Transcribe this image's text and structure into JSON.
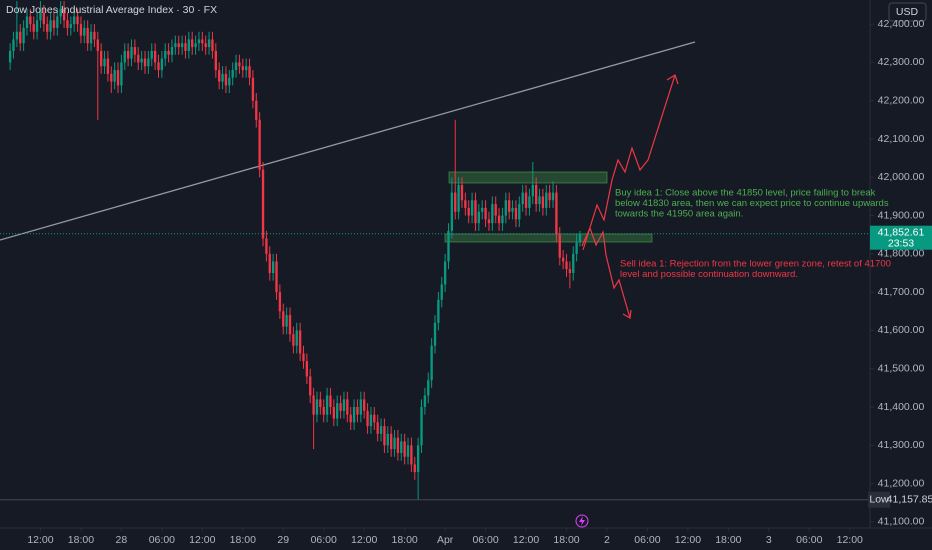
{
  "chart_data": {
    "type": "candlestick",
    "title": "Dow Jones Industrial Average Index · 30 · FX",
    "currency": "USD",
    "up_color": "#089981",
    "down_color": "#f23645",
    "grid": false,
    "xlim": [
      -3,
      255
    ],
    "ylim": [
      41084,
      42463
    ],
    "yticks": [
      {
        "value": 41100,
        "label": "41,100.00"
      },
      {
        "value": 41200,
        "label": "41,200.00"
      },
      {
        "value": 41300,
        "label": "41,300.00"
      },
      {
        "value": 41400,
        "label": "41,400.00"
      },
      {
        "value": 41500,
        "label": "41,500.00"
      },
      {
        "value": 41600,
        "label": "41,600.00"
      },
      {
        "value": 41700,
        "label": "41,700.00"
      },
      {
        "value": 41800,
        "label": "41,800.00"
      },
      {
        "value": 41900,
        "label": "41,900.00"
      },
      {
        "value": 42000,
        "label": "42,000.00"
      },
      {
        "value": 42100,
        "label": "42,100.00"
      },
      {
        "value": 42200,
        "label": "42,200.00"
      },
      {
        "value": 42300,
        "label": "42,300.00"
      },
      {
        "value": 42400,
        "label": "42,400.00"
      }
    ],
    "xticks": [
      {
        "value": 9,
        "label": "12:00"
      },
      {
        "value": 21,
        "label": "18:00"
      },
      {
        "value": 33,
        "label": "28"
      },
      {
        "value": 45,
        "label": "06:00"
      },
      {
        "value": 57,
        "label": "12:00"
      },
      {
        "value": 69,
        "label": "18:00"
      },
      {
        "value": 81,
        "label": "29"
      },
      {
        "value": 93,
        "label": "06:00"
      },
      {
        "value": 105,
        "label": "12:00"
      },
      {
        "value": 117,
        "label": "18:00"
      },
      {
        "value": 129,
        "label": "Apr"
      },
      {
        "value": 141,
        "label": "06:00"
      },
      {
        "value": 153,
        "label": "12:00"
      },
      {
        "value": 165,
        "label": "18:00"
      },
      {
        "value": 177,
        "label": "2"
      },
      {
        "value": 189,
        "label": "06:00"
      },
      {
        "value": 201,
        "label": "12:00"
      },
      {
        "value": 213,
        "label": "18:00"
      },
      {
        "value": 225,
        "label": "3"
      },
      {
        "value": 237,
        "label": "06:00"
      },
      {
        "value": 249,
        "label": "12:00"
      }
    ],
    "last_price": {
      "value": 41852.61,
      "label": "41,852.61"
    },
    "countdown": "23:53",
    "low": {
      "value": 41157.85,
      "label": "41,157.85"
    },
    "low_text": "Low",
    "buy_note": [
      "Buy idea 1: Close above the 41850 level, price failing to break",
      "below 41830 area, then we can expect price to continue upwards",
      "towards the 41950 area again."
    ],
    "sell_note": [
      "Sell idea 1: Rejection from the lower green zone, retest of 41700",
      "level and possible continuation downward."
    ],
    "ohlc": [
      [
        42300,
        42350,
        42280,
        42330
      ],
      [
        42330,
        42380,
        42310,
        42360
      ],
      [
        42360,
        42460,
        42340,
        42380
      ],
      [
        42380,
        42400,
        42330,
        42350
      ],
      [
        42350,
        42410,
        42330,
        42390
      ],
      [
        42390,
        42440,
        42370,
        42420
      ],
      [
        42420,
        42440,
        42380,
        42400
      ],
      [
        42400,
        42420,
        42360,
        42380
      ],
      [
        42380,
        42430,
        42360,
        42410
      ],
      [
        42410,
        42460,
        42390,
        42430
      ],
      [
        42430,
        42450,
        42380,
        42400
      ],
      [
        42400,
        42420,
        42360,
        42380
      ],
      [
        42380,
        42430,
        42360,
        42410
      ],
      [
        42410,
        42430,
        42370,
        42390
      ],
      [
        42390,
        42440,
        42370,
        42420
      ],
      [
        42420,
        42460,
        42400,
        42440
      ],
      [
        42440,
        42460,
        42390,
        42410
      ],
      [
        42410,
        42430,
        42370,
        42390
      ],
      [
        42390,
        42420,
        42370,
        42400
      ],
      [
        42400,
        42440,
        42380,
        42420
      ],
      [
        42420,
        42440,
        42380,
        42400
      ],
      [
        42400,
        42420,
        42350,
        42370
      ],
      [
        42370,
        42410,
        42350,
        42390
      ],
      [
        42390,
        42410,
        42330,
        42350
      ],
      [
        42350,
        42400,
        42330,
        42380
      ],
      [
        42380,
        42400,
        42340,
        42360
      ],
      [
        42360,
        42380,
        42150,
        42330
      ],
      [
        42330,
        42350,
        42270,
        42290
      ],
      [
        42290,
        42330,
        42270,
        42310
      ],
      [
        42310,
        42330,
        42250,
        42270
      ],
      [
        42270,
        42290,
        42220,
        42250
      ],
      [
        42250,
        42300,
        42230,
        42280
      ],
      [
        42280,
        42300,
        42220,
        42240
      ],
      [
        42240,
        42320,
        42220,
        42300
      ],
      [
        42300,
        42350,
        42280,
        42330
      ],
      [
        42330,
        42350,
        42290,
        42310
      ],
      [
        42310,
        42360,
        42290,
        42340
      ],
      [
        42340,
        42360,
        42300,
        42320
      ],
      [
        42320,
        42340,
        42280,
        42300
      ],
      [
        42300,
        42330,
        42280,
        42310
      ],
      [
        42310,
        42330,
        42270,
        42290
      ],
      [
        42290,
        42330,
        42270,
        42310
      ],
      [
        42310,
        42350,
        42290,
        42330
      ],
      [
        42330,
        42350,
        42280,
        42300
      ],
      [
        42300,
        42320,
        42260,
        42280
      ],
      [
        42280,
        42330,
        42260,
        42310
      ],
      [
        42310,
        42350,
        42290,
        42330
      ],
      [
        42330,
        42350,
        42300,
        42320
      ],
      [
        42320,
        42360,
        42300,
        42340
      ],
      [
        42340,
        42370,
        42320,
        42350
      ],
      [
        42350,
        42370,
        42320,
        42340
      ],
      [
        42340,
        42370,
        42320,
        42350
      ],
      [
        42350,
        42370,
        42310,
        42330
      ],
      [
        42330,
        42380,
        42310,
        42360
      ],
      [
        42360,
        42380,
        42320,
        42340
      ],
      [
        42340,
        42370,
        42320,
        42350
      ],
      [
        42350,
        42380,
        42330,
        42360
      ],
      [
        42360,
        42380,
        42330,
        42350
      ],
      [
        42350,
        42370,
        42320,
        42340
      ],
      [
        42340,
        42380,
        42320,
        42360
      ],
      [
        42360,
        42380,
        42310,
        42330
      ],
      [
        42330,
        42350,
        42260,
        42280
      ],
      [
        42280,
        42300,
        42230,
        42250
      ],
      [
        42250,
        42290,
        42230,
        42270
      ],
      [
        42270,
        42290,
        42220,
        42240
      ],
      [
        42240,
        42280,
        42220,
        42260
      ],
      [
        42260,
        42300,
        42240,
        42280
      ],
      [
        42280,
        42320,
        42260,
        42300
      ],
      [
        42300,
        42320,
        42270,
        42290
      ],
      [
        42290,
        42310,
        42260,
        42280
      ],
      [
        42280,
        42310,
        42260,
        42290
      ],
      [
        42290,
        42310,
        42240,
        42260
      ],
      [
        42260,
        42280,
        42180,
        42200
      ],
      [
        42200,
        42220,
        42130,
        42150
      ],
      [
        42150,
        42170,
        42000,
        42020
      ],
      [
        42020,
        42040,
        41820,
        41840
      ],
      [
        41840,
        41860,
        41780,
        41800
      ],
      [
        41800,
        41820,
        41730,
        41750
      ],
      [
        41750,
        41800,
        41730,
        41780
      ],
      [
        41780,
        41800,
        41680,
        41700
      ],
      [
        41700,
        41720,
        41630,
        41650
      ],
      [
        41650,
        41670,
        41590,
        41610
      ],
      [
        41610,
        41660,
        41590,
        41640
      ],
      [
        41640,
        41660,
        41570,
        41590
      ],
      [
        41590,
        41610,
        41540,
        41560
      ],
      [
        41560,
        41620,
        41540,
        41600
      ],
      [
        41600,
        41620,
        41520,
        41540
      ],
      [
        41540,
        41560,
        41500,
        41520
      ],
      [
        41520,
        41540,
        41460,
        41480
      ],
      [
        41480,
        41500,
        41410,
        41430
      ],
      [
        41430,
        41450,
        41290,
        41380
      ],
      [
        41380,
        41440,
        41360,
        41420
      ],
      [
        41420,
        41440,
        41380,
        41400
      ],
      [
        41400,
        41420,
        41360,
        41380
      ],
      [
        41380,
        41450,
        41360,
        41430
      ],
      [
        41430,
        41450,
        41380,
        41400
      ],
      [
        41400,
        41420,
        41350,
        41370
      ],
      [
        41370,
        41430,
        41350,
        41410
      ],
      [
        41410,
        41430,
        41370,
        41390
      ],
      [
        41390,
        41440,
        41370,
        41420
      ],
      [
        41420,
        41440,
        41360,
        41380
      ],
      [
        41380,
        41400,
        41340,
        41360
      ],
      [
        41360,
        41420,
        41340,
        41400
      ],
      [
        41400,
        41420,
        41360,
        41380
      ],
      [
        41380,
        41440,
        41360,
        41420
      ],
      [
        41420,
        41440,
        41370,
        41390
      ],
      [
        41390,
        41410,
        41330,
        41350
      ],
      [
        41350,
        41400,
        41330,
        41380
      ],
      [
        41380,
        41400,
        41340,
        41360
      ],
      [
        41360,
        41380,
        41310,
        41330
      ],
      [
        41330,
        41370,
        41310,
        41350
      ],
      [
        41350,
        41370,
        41280,
        41300
      ],
      [
        41300,
        41350,
        41280,
        41330
      ],
      [
        41330,
        41350,
        41270,
        41290
      ],
      [
        41290,
        41340,
        41270,
        41320
      ],
      [
        41320,
        41340,
        41260,
        41280
      ],
      [
        41280,
        41330,
        41260,
        41310
      ],
      [
        41310,
        41330,
        41250,
        41270
      ],
      [
        41270,
        41320,
        41250,
        41300
      ],
      [
        41300,
        41320,
        41230,
        41250
      ],
      [
        41250,
        41270,
        41210,
        41230
      ],
      [
        41230,
        41320,
        41157.85,
        41300
      ],
      [
        41300,
        41420,
        41280,
        41400
      ],
      [
        41400,
        41450,
        41380,
        41430
      ],
      [
        41430,
        41490,
        41410,
        41470
      ],
      [
        41470,
        41580,
        41450,
        41560
      ],
      [
        41560,
        41640,
        41540,
        41620
      ],
      [
        41620,
        41700,
        41600,
        41680
      ],
      [
        41680,
        41740,
        41660,
        41720
      ],
      [
        41720,
        41800,
        41700,
        41780
      ],
      [
        41780,
        41880,
        41760,
        41860
      ],
      [
        41860,
        42000,
        41840,
        41960
      ],
      [
        41960,
        42150,
        41890,
        41910
      ],
      [
        41910,
        42000,
        41890,
        41980
      ],
      [
        41980,
        42000,
        41920,
        41940
      ],
      [
        41940,
        41960,
        41900,
        41920
      ],
      [
        41920,
        41940,
        41880,
        41900
      ],
      [
        41900,
        41960,
        41880,
        41940
      ],
      [
        41940,
        41960,
        41860,
        41880
      ],
      [
        41880,
        41930,
        41860,
        41910
      ],
      [
        41910,
        41940,
        41890,
        41920
      ],
      [
        41920,
        41940,
        41870,
        41890
      ],
      [
        41890,
        41910,
        41860,
        41880
      ],
      [
        41880,
        41950,
        41860,
        41930
      ],
      [
        41930,
        41950,
        41880,
        41900
      ],
      [
        41900,
        41920,
        41860,
        41880
      ],
      [
        41880,
        41920,
        41860,
        41900
      ],
      [
        41900,
        41960,
        41880,
        41940
      ],
      [
        41940,
        41960,
        41890,
        41910
      ],
      [
        41910,
        41940,
        41890,
        41920
      ],
      [
        41920,
        41940,
        41870,
        41890
      ],
      [
        41890,
        41950,
        41870,
        41930
      ],
      [
        41930,
        41980,
        41910,
        41960
      ],
      [
        41960,
        41980,
        41900,
        41920
      ],
      [
        41920,
        41970,
        41900,
        41950
      ],
      [
        41950,
        42040,
        41930,
        41980
      ],
      [
        41980,
        42000,
        41910,
        41930
      ],
      [
        41930,
        41970,
        41910,
        41950
      ],
      [
        41950,
        41970,
        41900,
        41920
      ],
      [
        41920,
        41980,
        41900,
        41960
      ],
      [
        41960,
        41980,
        41920,
        41940
      ],
      [
        41940,
        41990,
        41920,
        41960
      ],
      [
        41960,
        41980,
        41830,
        41850
      ],
      [
        41850,
        41870,
        41770,
        41790
      ],
      [
        41790,
        41810,
        41760,
        41780
      ],
      [
        41780,
        41800,
        41740,
        41760
      ],
      [
        41760,
        41780,
        41710,
        41750
      ],
      [
        41750,
        41820,
        41730,
        41800
      ],
      [
        41800,
        41850,
        41780,
        41830
      ],
      [
        41830,
        41860,
        41820,
        41852.61
      ]
    ]
  }
}
